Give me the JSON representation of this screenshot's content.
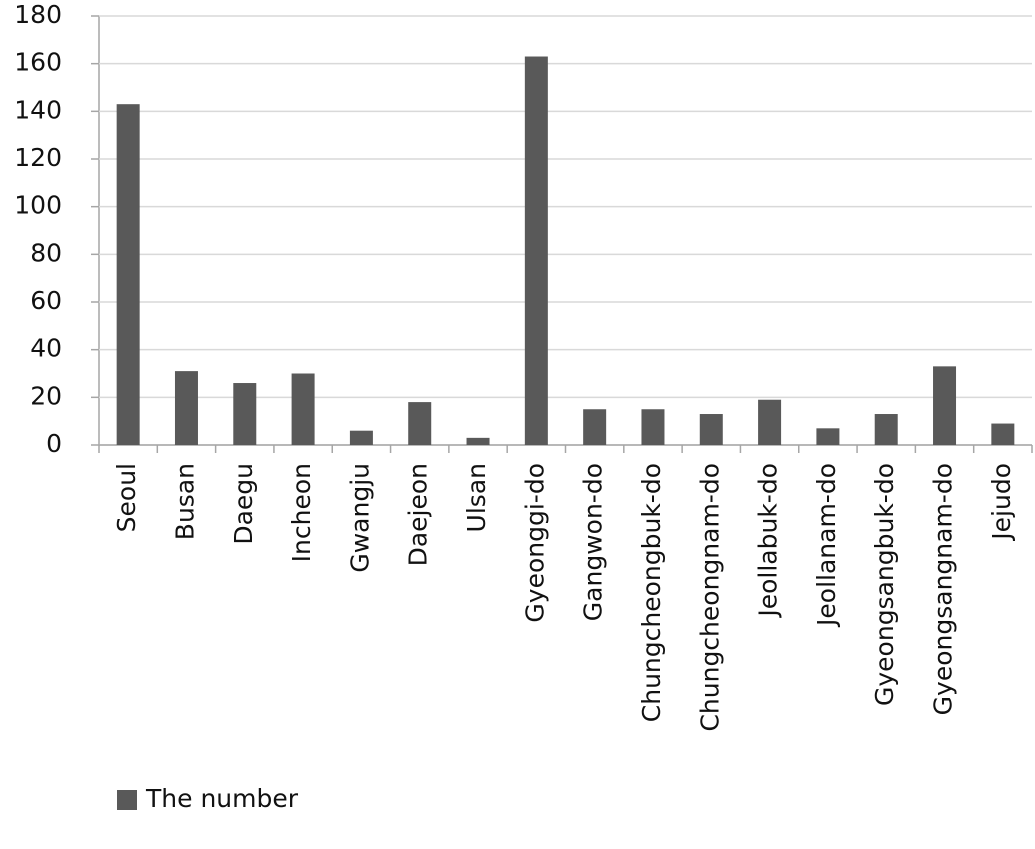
{
  "chart_data": {
    "type": "bar",
    "categories": [
      "Seoul",
      "Busan",
      "Daegu",
      "Incheon",
      "Gwangju",
      "Daejeon",
      "Ulsan",
      "Gyeonggi-do",
      "Gangwon-do",
      "Chungcheongbuk-do",
      "Chungcheongnam-do",
      "Jeollabuk-do",
      "Jeollanam-do",
      "Gyeongsangbuk-do",
      "Gyeongsangnam-do",
      "Jejudo"
    ],
    "series": [
      {
        "name": "The number",
        "color": "#595959",
        "values": [
          143,
          31,
          26,
          30,
          6,
          18,
          3,
          163,
          15,
          15,
          13,
          19,
          7,
          13,
          33,
          9
        ]
      }
    ],
    "ylim": [
      0,
      180
    ],
    "yticks": [
      0,
      20,
      40,
      60,
      80,
      100,
      120,
      140,
      160,
      180
    ],
    "grid": true,
    "legend": "bottom-left"
  }
}
